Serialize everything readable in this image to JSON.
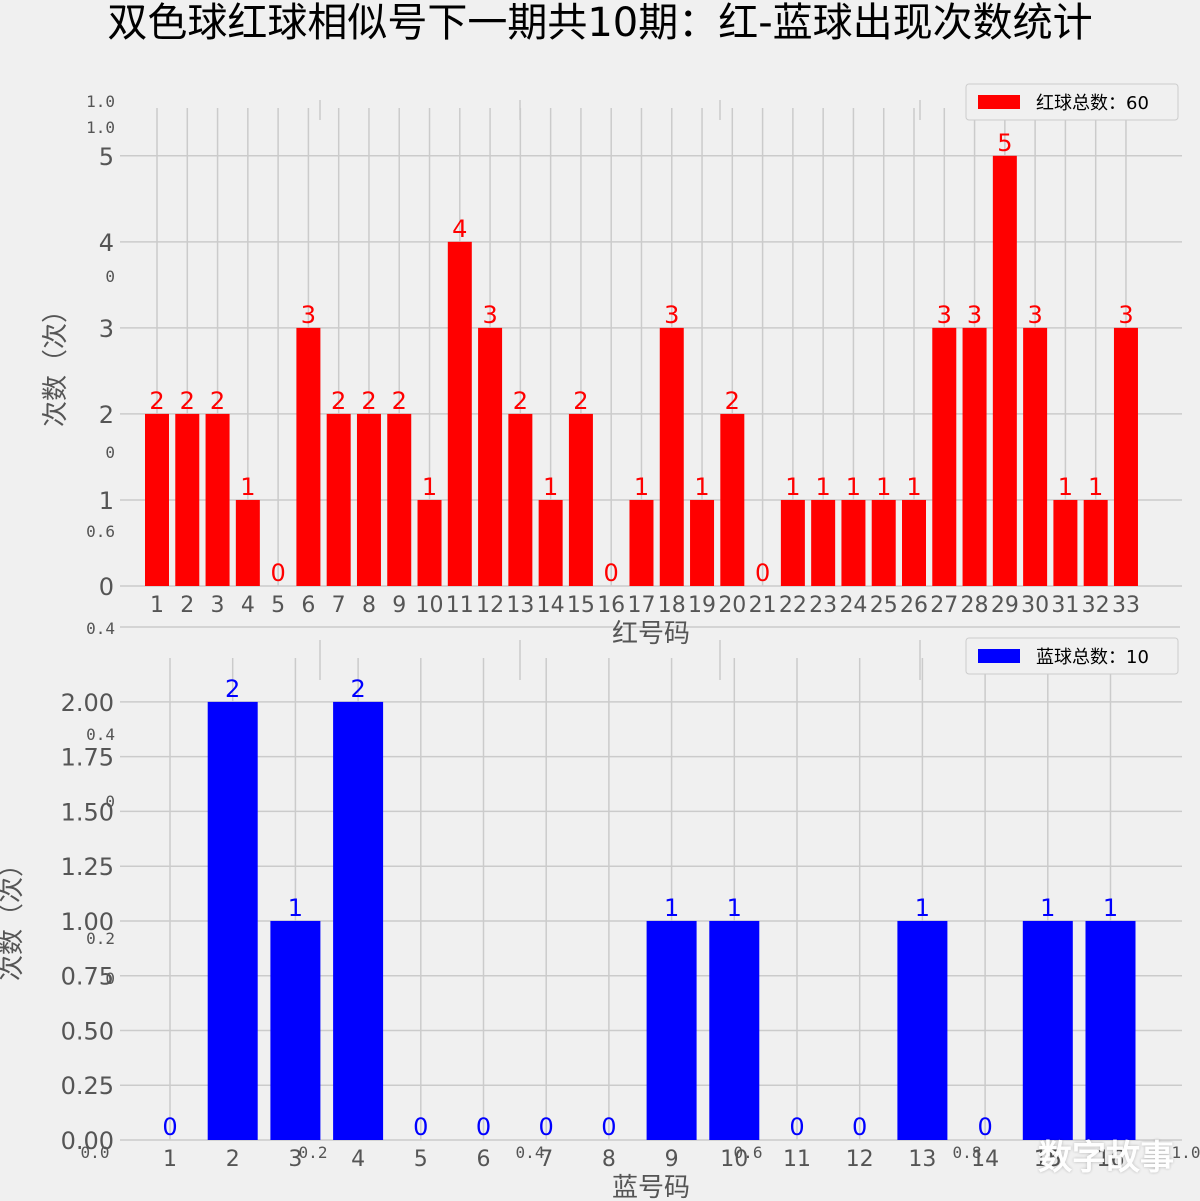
{
  "title": "双色球红球相似号下一期共10期：红-蓝球出现次数统计",
  "watermark": "数字故事",
  "ghost_ticks": {
    "y_left": [
      "1.0",
      "1.0",
      "0",
      "0",
      "0.6",
      "0.4",
      "0.4",
      "0",
      "0.2",
      "0"
    ],
    "x_bottom": [
      "0.0",
      "0.2",
      "0.4",
      "0.6",
      "0.8",
      "1.0"
    ]
  },
  "colors": {
    "red": "#ff0000",
    "blue": "#0000ff",
    "background": "#f0f0f0",
    "grid": "#cbcbcb"
  },
  "chart_data": [
    {
      "type": "bar",
      "title": "",
      "xlabel": "红号码",
      "ylabel": "次数（次）",
      "legend": "红球总数：60",
      "legend_position": "top-right",
      "categories": [
        "1",
        "2",
        "3",
        "4",
        "5",
        "6",
        "7",
        "8",
        "9",
        "10",
        "11",
        "12",
        "13",
        "14",
        "15",
        "16",
        "17",
        "18",
        "19",
        "20",
        "21",
        "22",
        "23",
        "24",
        "25",
        "26",
        "27",
        "28",
        "29",
        "30",
        "31",
        "32",
        "33"
      ],
      "values": [
        2,
        2,
        2,
        1,
        0,
        3,
        2,
        2,
        2,
        1,
        4,
        3,
        2,
        1,
        2,
        0,
        1,
        3,
        1,
        2,
        0,
        1,
        1,
        1,
        1,
        1,
        3,
        3,
        5,
        3,
        1,
        1,
        3
      ],
      "yticks": [
        "0",
        "1",
        "2",
        "3",
        "4",
        "5"
      ],
      "ylim": [
        0,
        5.3
      ],
      "color": "#ff0000"
    },
    {
      "type": "bar",
      "title": "",
      "xlabel": "蓝号码",
      "ylabel": "次数（次）",
      "legend": "蓝球总数：10",
      "legend_position": "top-right",
      "categories": [
        "1",
        "2",
        "3",
        "4",
        "5",
        "6",
        "7",
        "8",
        "9",
        "10",
        "11",
        "12",
        "13",
        "14",
        "15",
        "16"
      ],
      "values": [
        0,
        2,
        1,
        2,
        0,
        0,
        0,
        0,
        1,
        1,
        0,
        0,
        1,
        0,
        1,
        1
      ],
      "yticks": [
        "0.00",
        "0.25",
        "0.50",
        "0.75",
        "1.00",
        "1.25",
        "1.50",
        "1.75",
        "2.00"
      ],
      "ylim": [
        0,
        2.1
      ],
      "color": "#0000ff"
    }
  ]
}
